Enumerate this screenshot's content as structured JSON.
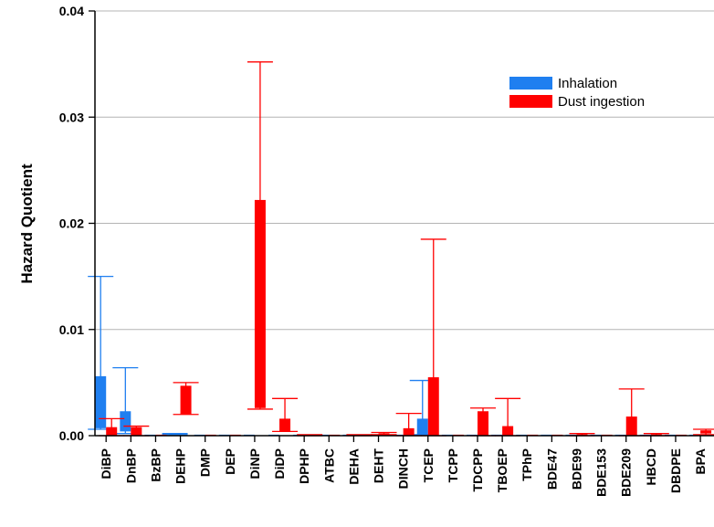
{
  "chart_data": {
    "type": "bar",
    "ylabel": "Hazard Quotient",
    "xlabel": "",
    "ylim": [
      0,
      0.04
    ],
    "yticks": [
      0,
      0.01,
      0.02,
      0.03,
      0.04
    ],
    "ytick_labels": [
      "0.00",
      "0.01",
      "0.02",
      "0.03",
      "0.04"
    ],
    "grid": true,
    "legend_position": "top-right",
    "categories": [
      "DiBP",
      "DnBP",
      "BzBP",
      "DEHP",
      "DMP",
      "DEP",
      "DiNP",
      "DiDP",
      "DPHP",
      "ATBC",
      "DEHA",
      "DEHT",
      "DINCH",
      "TCEP",
      "TCPP",
      "TDCPP",
      "TBOEP",
      "TPhP",
      "BDE47",
      "BDE99",
      "BDE153",
      "BDE209",
      "HBCD",
      "DBDPE",
      "BPA"
    ],
    "series": [
      {
        "name": "Inhalation",
        "color": "#1f7ff0",
        "low": [
          0.0007,
          0.0004,
          0,
          0.0001,
          0,
          0,
          0,
          0,
          0,
          0,
          0,
          0,
          0,
          0.0001,
          0,
          0,
          0,
          0,
          0,
          0,
          0,
          0,
          0,
          0,
          0
        ],
        "high": [
          0.0056,
          0.0023,
          0,
          0.0002,
          0,
          0,
          0,
          0,
          0,
          0,
          0,
          0,
          0,
          0.0016,
          0,
          0,
          0,
          0,
          0,
          0,
          0,
          0,
          0,
          0,
          0
        ],
        "whisker_low": [
          0.0006,
          0.0002,
          0,
          0.0001,
          0,
          0,
          0,
          0,
          0,
          0,
          0,
          0,
          0,
          0.0001,
          0,
          0,
          0,
          0,
          0,
          0,
          0,
          0,
          0,
          0,
          0
        ],
        "whisker_high": [
          0.015,
          0.0064,
          0,
          0.0002,
          0,
          0,
          0,
          0,
          0,
          0,
          0,
          0,
          0,
          0.0052,
          0,
          0,
          0,
          0,
          0,
          0,
          0,
          0,
          0,
          0,
          0
        ]
      },
      {
        "name": "Dust ingestion",
        "color": "#ff0000",
        "low": [
          0,
          0,
          0,
          0.002,
          0,
          0,
          0.0026,
          0.0004,
          0,
          0,
          0,
          0.0001,
          0,
          0,
          0,
          0,
          0,
          0,
          0,
          0,
          0,
          0,
          0,
          0,
          0.0002
        ],
        "high": [
          0.0008,
          0.0008,
          0,
          0.0047,
          0,
          0,
          0.0222,
          0.0016,
          0.0001,
          0,
          0.0001,
          0.0002,
          0.0007,
          0.0055,
          0,
          0.0023,
          0.0009,
          0,
          0,
          0.0001,
          0,
          0.0018,
          0.0001,
          0,
          0.0005
        ],
        "whisker_low": [
          0,
          0,
          0,
          0.002,
          0,
          0,
          0.0025,
          0.0004,
          0,
          0,
          0,
          0.0001,
          0,
          0,
          0,
          0,
          0,
          0,
          0,
          0,
          0,
          0,
          0,
          0,
          0.0001
        ],
        "whisker_high": [
          0.0016,
          0.0009,
          0,
          0.005,
          0,
          0,
          0.0352,
          0.0035,
          0.0001,
          0,
          0.0001,
          0.0003,
          0.0021,
          0.0185,
          0,
          0.0026,
          0.0035,
          0,
          0,
          0.0002,
          0,
          0.0044,
          0.0002,
          0,
          0.0006
        ]
      }
    ]
  }
}
